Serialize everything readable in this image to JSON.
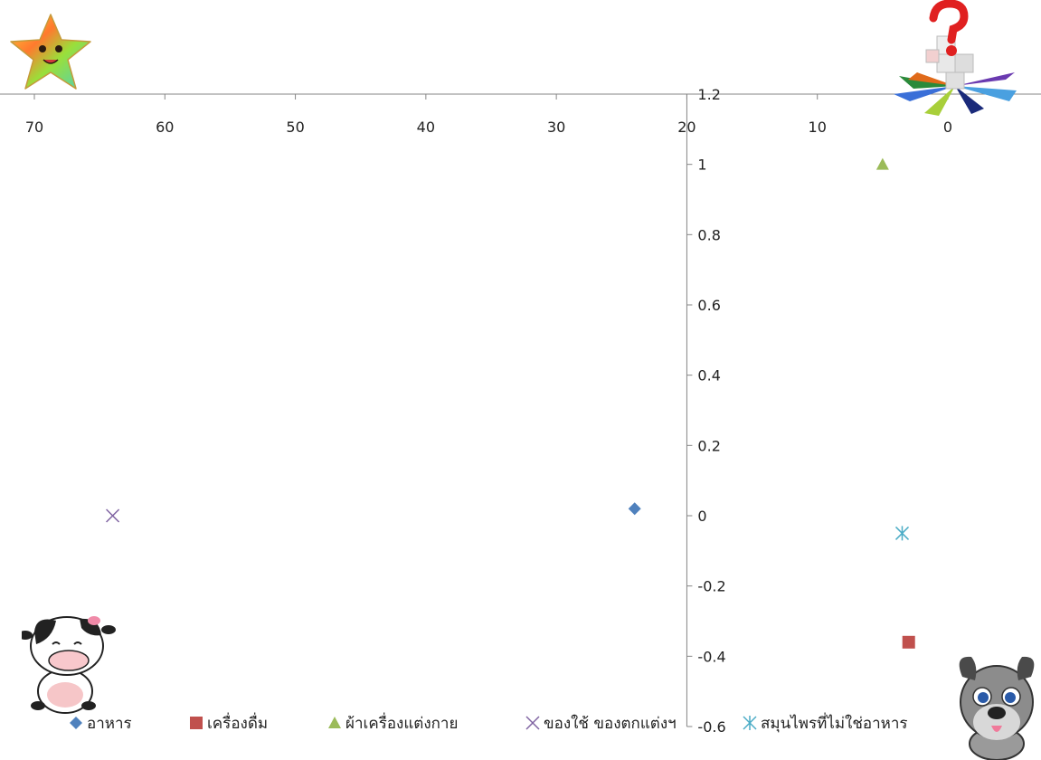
{
  "chart_data": {
    "type": "scatter",
    "x_axis": {
      "min": 0,
      "max": 70,
      "reversed": true,
      "ticks": [
        70,
        60,
        50,
        40,
        30,
        20,
        10,
        0
      ],
      "position": "top"
    },
    "y_axis": {
      "min": -0.6,
      "max": 1.2,
      "ticks": [
        1.2,
        1,
        0.8,
        0.6,
        0.4,
        0.2,
        0,
        -0.2,
        -0.4,
        -0.6
      ],
      "crosses_x_at": 20
    },
    "grid": false,
    "legend_position": "bottom",
    "series": [
      {
        "name": "อาหาร",
        "marker": "diamond",
        "color": "#4f81bd",
        "points": [
          {
            "x": 24,
            "y": 0.02
          }
        ]
      },
      {
        "name": "เครื่องดื่ม",
        "marker": "square",
        "color": "#c0504d",
        "points": [
          {
            "x": 3,
            "y": -0.36
          }
        ]
      },
      {
        "name": "ผ้าเครื่องแต่งกาย",
        "marker": "triangle",
        "color": "#9bbb59",
        "points": [
          {
            "x": 5,
            "y": 1.0
          }
        ]
      },
      {
        "name": "ของใช้ ของตกแต่งฯ",
        "marker": "x",
        "color": "#8064a2",
        "points": [
          {
            "x": 64,
            "y": 0.0
          }
        ]
      },
      {
        "name": "สมุนไพรที่ไม่ใช่อาหาร",
        "marker": "star",
        "color": "#4bacc6",
        "points": [
          {
            "x": 3.5,
            "y": -0.05
          }
        ]
      }
    ]
  },
  "decorations": {
    "top_left": "star-plush-icon",
    "top_right": "question-cube-icon",
    "bottom_left": "cow-cartoon-icon",
    "bottom_right": "dog-cartoon-icon"
  }
}
